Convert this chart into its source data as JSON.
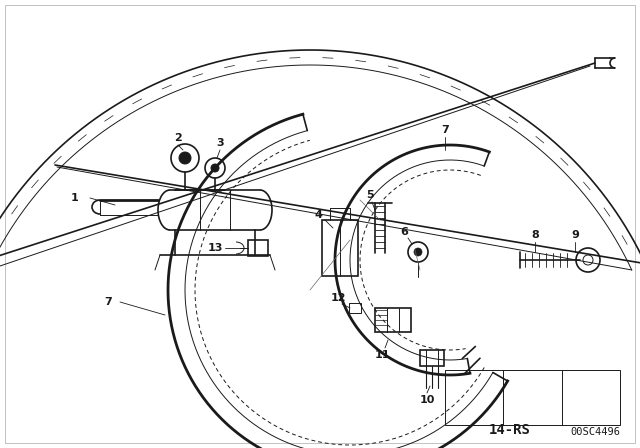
{
  "bg_color": "#ffffff",
  "line_color": "#1a1a1a",
  "fig_width": 6.4,
  "fig_height": 4.48,
  "dpi": 100,
  "footer_left": "14-RS",
  "footer_right": "00SC4496",
  "border_color": "#cccccc"
}
